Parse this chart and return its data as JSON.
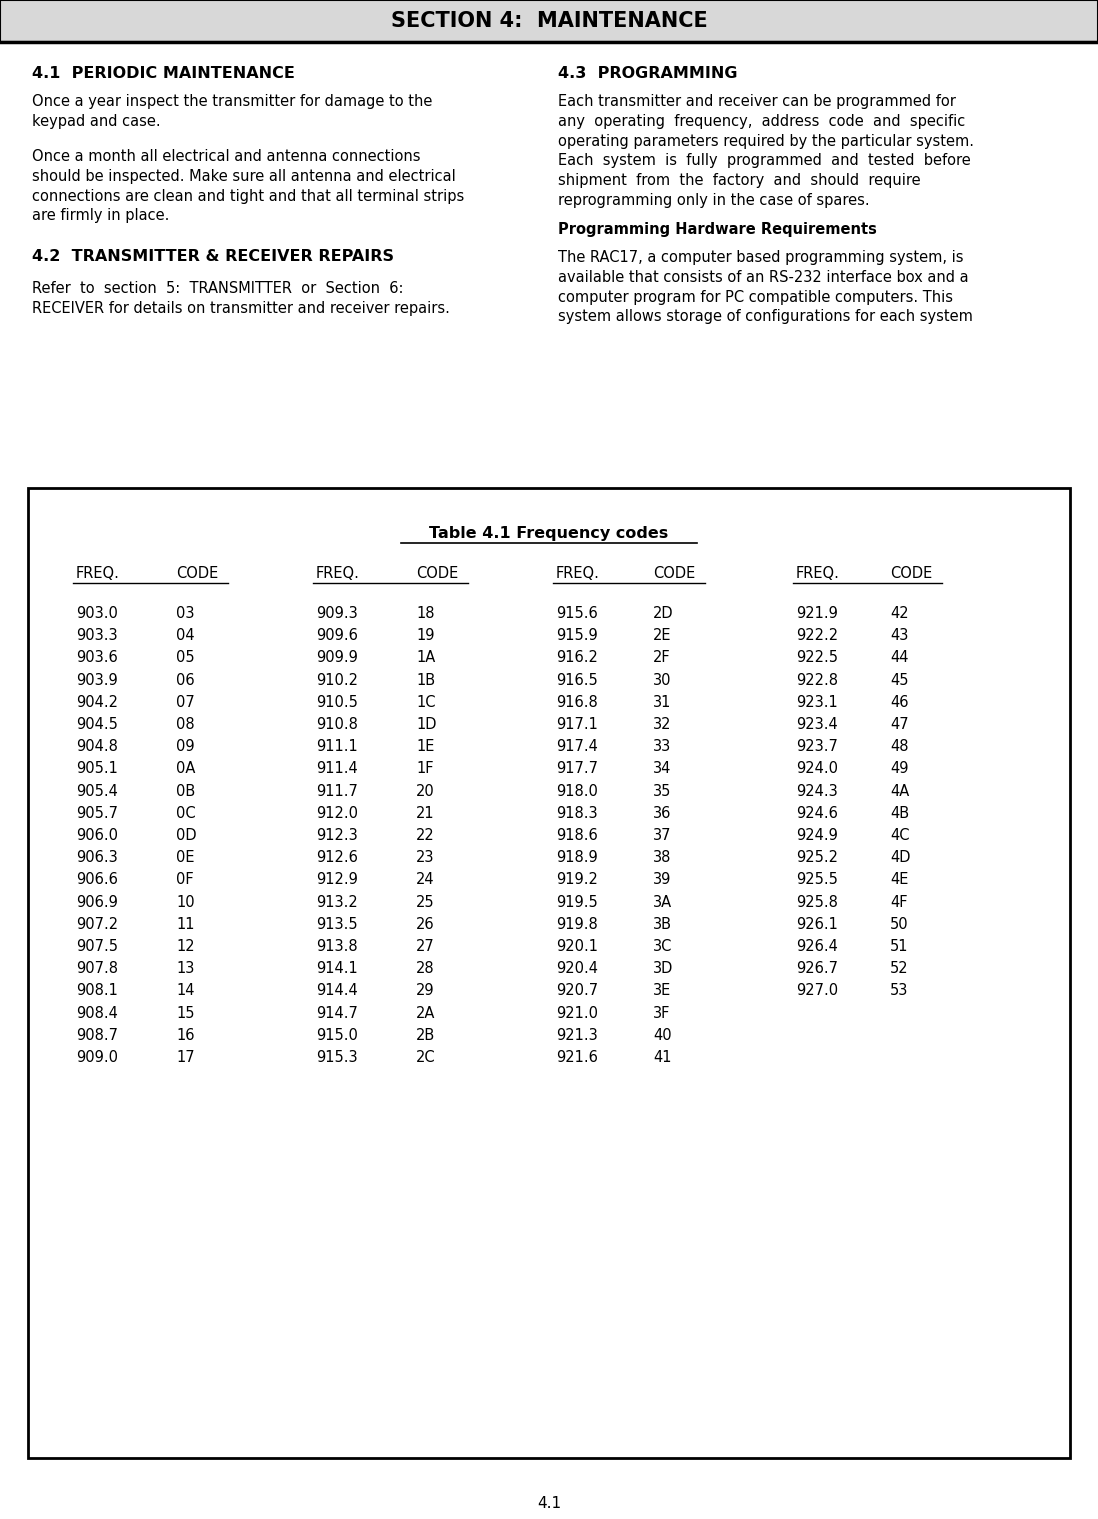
{
  "title": "SECTION 4:  MAINTENANCE",
  "bg_color": "#ffffff",
  "page_number": "4.1",
  "left_col": {
    "heading1": "4.1  PERIODIC MAINTENANCE",
    "para1": "Once a year inspect the transmitter for damage to the\nkeypad and case.",
    "para2": "Once a month all electrical and antenna connections\nshould be inspected. Make sure all antenna and electrical\nconnections are clean and tight and that all terminal strips\nare firmly in place.",
    "heading2": "4.2  TRANSMITTER & RECEIVER REPAIRS",
    "para3": "Refer  to  section  5:  TRANSMITTER  or  Section  6:\nRECEIVER for details on transmitter and receiver repairs."
  },
  "right_col": {
    "heading1": "4.3  PROGRAMMING",
    "para1": "Each transmitter and receiver can be programmed for\nany  operating  frequency,  address  code  and  specific\noperating parameters required by the particular system.\nEach  system  is  fully  programmed  and  tested  before\nshipment  from  the  factory  and  should  require\nreprogramming only in the case of spares.",
    "heading2": "Programming Hardware Requirements",
    "para2": "The RAC17, a computer based programming system, is\navailable that consists of an RS-232 interface box and a\ncomputer program for PC compatible computers. This\nsystem allows storage of configurations for each system"
  },
  "table": {
    "title": "Table 4.1 Frequency codes",
    "columns": [
      {
        "header_freq": "FREQ.",
        "header_code": "CODE",
        "data": [
          [
            "903.0",
            "03"
          ],
          [
            "903.3",
            "04"
          ],
          [
            "903.6",
            "05"
          ],
          [
            "903.9",
            "06"
          ],
          [
            "904.2",
            "07"
          ],
          [
            "904.5",
            "08"
          ],
          [
            "904.8",
            "09"
          ],
          [
            "905.1",
            "0A"
          ],
          [
            "905.4",
            "0B"
          ],
          [
            "905.7",
            "0C"
          ],
          [
            "906.0",
            "0D"
          ],
          [
            "906.3",
            "0E"
          ],
          [
            "906.6",
            "0F"
          ],
          [
            "906.9",
            "10"
          ],
          [
            "907.2",
            "11"
          ],
          [
            "907.5",
            "12"
          ],
          [
            "907.8",
            "13"
          ],
          [
            "908.1",
            "14"
          ],
          [
            "908.4",
            "15"
          ],
          [
            "908.7",
            "16"
          ],
          [
            "909.0",
            "17"
          ]
        ]
      },
      {
        "header_freq": "FREQ.",
        "header_code": "CODE",
        "data": [
          [
            "909.3",
            "18"
          ],
          [
            "909.6",
            "19"
          ],
          [
            "909.9",
            "1A"
          ],
          [
            "910.2",
            "1B"
          ],
          [
            "910.5",
            "1C"
          ],
          [
            "910.8",
            "1D"
          ],
          [
            "911.1",
            "1E"
          ],
          [
            "911.4",
            "1F"
          ],
          [
            "911.7",
            "20"
          ],
          [
            "912.0",
            "21"
          ],
          [
            "912.3",
            "22"
          ],
          [
            "912.6",
            "23"
          ],
          [
            "912.9",
            "24"
          ],
          [
            "913.2",
            "25"
          ],
          [
            "913.5",
            "26"
          ],
          [
            "913.8",
            "27"
          ],
          [
            "914.1",
            "28"
          ],
          [
            "914.4",
            "29"
          ],
          [
            "914.7",
            "2A"
          ],
          [
            "915.0",
            "2B"
          ],
          [
            "915.3",
            "2C"
          ]
        ]
      },
      {
        "header_freq": "FREQ.",
        "header_code": "CODE",
        "data": [
          [
            "915.6",
            "2D"
          ],
          [
            "915.9",
            "2E"
          ],
          [
            "916.2",
            "2F"
          ],
          [
            "916.5",
            "30"
          ],
          [
            "916.8",
            "31"
          ],
          [
            "917.1",
            "32"
          ],
          [
            "917.4",
            "33"
          ],
          [
            "917.7",
            "34"
          ],
          [
            "918.0",
            "35"
          ],
          [
            "918.3",
            "36"
          ],
          [
            "918.6",
            "37"
          ],
          [
            "918.9",
            "38"
          ],
          [
            "919.2",
            "39"
          ],
          [
            "919.5",
            "3A"
          ],
          [
            "919.8",
            "3B"
          ],
          [
            "920.1",
            "3C"
          ],
          [
            "920.4",
            "3D"
          ],
          [
            "920.7",
            "3E"
          ],
          [
            "921.0",
            "3F"
          ],
          [
            "921.3",
            "40"
          ],
          [
            "921.6",
            "41"
          ]
        ]
      },
      {
        "header_freq": "FREQ.",
        "header_code": "CODE",
        "data": [
          [
            "921.9",
            "42"
          ],
          [
            "922.2",
            "43"
          ],
          [
            "922.5",
            "44"
          ],
          [
            "922.8",
            "45"
          ],
          [
            "923.1",
            "46"
          ],
          [
            "923.4",
            "47"
          ],
          [
            "923.7",
            "48"
          ],
          [
            "924.0",
            "49"
          ],
          [
            "924.3",
            "4A"
          ],
          [
            "924.6",
            "4B"
          ],
          [
            "924.9",
            "4C"
          ],
          [
            "925.2",
            "4D"
          ],
          [
            "925.5",
            "4E"
          ],
          [
            "925.8",
            "4F"
          ],
          [
            "926.1",
            "50"
          ],
          [
            "926.4",
            "51"
          ],
          [
            "926.7",
            "52"
          ],
          [
            "927.0",
            "53"
          ]
        ]
      }
    ]
  }
}
